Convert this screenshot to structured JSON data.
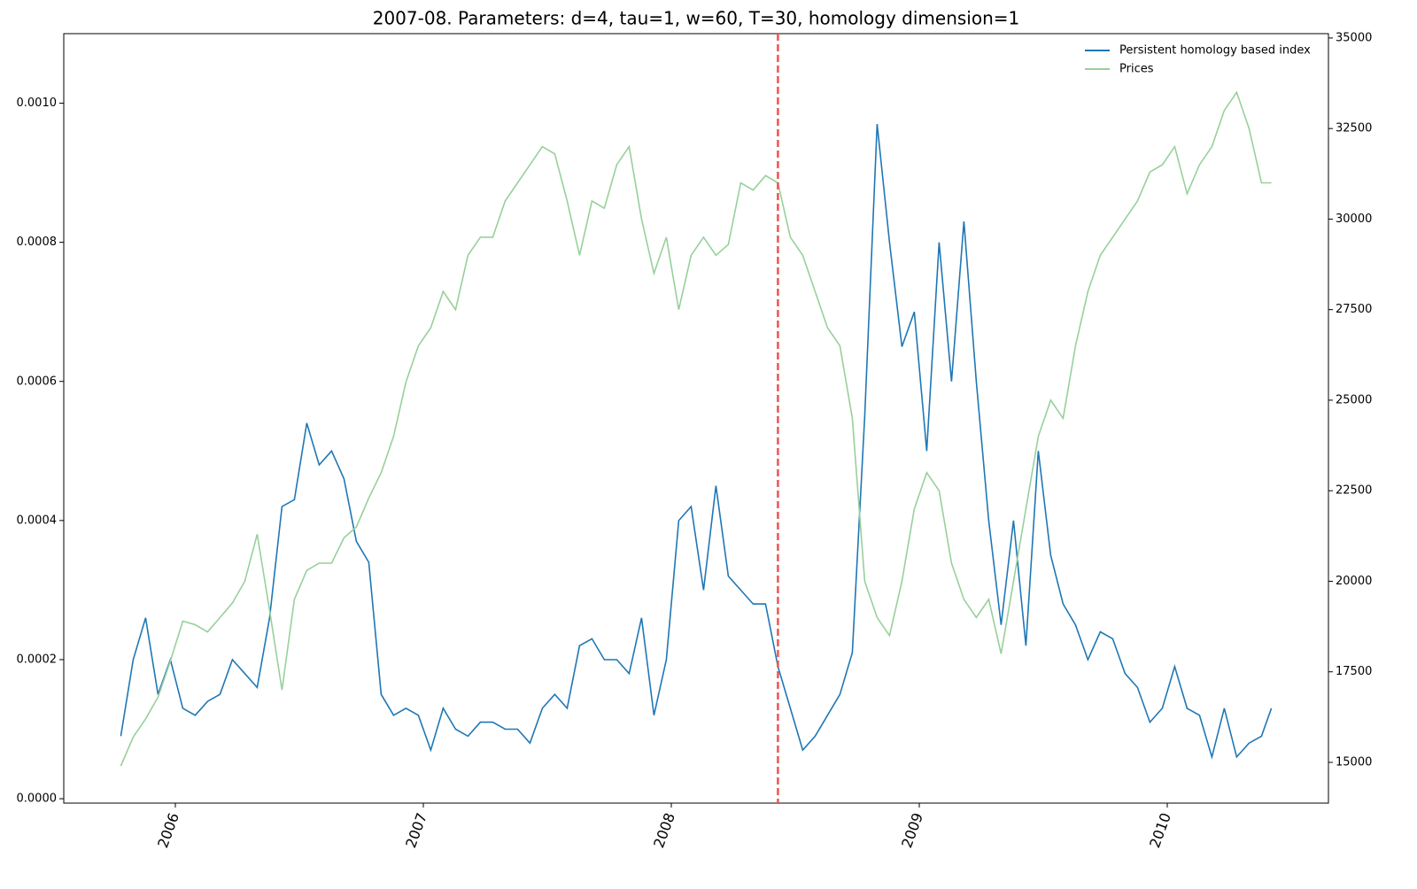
{
  "chart_data": {
    "type": "line",
    "title": "2007-08. Parameters: d=4, tau=1, w=60, T=30, homology dimension=1",
    "x": [
      2005.78,
      2005.83,
      2005.88,
      2005.93,
      2005.98,
      2006.03,
      2006.08,
      2006.13,
      2006.18,
      2006.23,
      2006.28,
      2006.33,
      2006.38,
      2006.43,
      2006.48,
      2006.53,
      2006.58,
      2006.63,
      2006.68,
      2006.73,
      2006.78,
      2006.83,
      2006.88,
      2006.93,
      2006.98,
      2007.03,
      2007.08,
      2007.13,
      2007.18,
      2007.23,
      2007.28,
      2007.33,
      2007.38,
      2007.43,
      2007.48,
      2007.53,
      2007.58,
      2007.63,
      2007.68,
      2007.73,
      2007.78,
      2007.83,
      2007.88,
      2007.93,
      2007.98,
      2008.03,
      2008.08,
      2008.13,
      2008.18,
      2008.23,
      2008.28,
      2008.33,
      2008.38,
      2008.43,
      2008.48,
      2008.53,
      2008.58,
      2008.63,
      2008.68,
      2008.73,
      2008.78,
      2008.83,
      2008.88,
      2008.93,
      2008.98,
      2009.03,
      2009.08,
      2009.13,
      2009.18,
      2009.23,
      2009.28,
      2009.33,
      2009.38,
      2009.43,
      2009.48,
      2009.53,
      2009.58,
      2009.63,
      2009.68,
      2009.73,
      2009.78,
      2009.83,
      2009.88,
      2009.93,
      2009.98,
      2010.03,
      2010.08,
      2010.13,
      2010.18,
      2010.23,
      2010.28,
      2010.33,
      2010.38,
      2010.42
    ],
    "series": [
      {
        "name": "Persistent homology based index",
        "color": "#1f77b4",
        "values": [
          9e-05,
          0.0002,
          0.00026,
          0.00015,
          0.0002,
          0.00013,
          0.00012,
          0.00014,
          0.00015,
          0.0002,
          0.00018,
          0.00016,
          0.00026,
          0.00042,
          0.00043,
          0.00054,
          0.00048,
          0.0005,
          0.00046,
          0.00037,
          0.00034,
          0.00015,
          0.00012,
          0.00013,
          0.00012,
          7e-05,
          0.00013,
          0.0001,
          9e-05,
          0.00011,
          0.00011,
          0.0001,
          0.0001,
          8e-05,
          0.00013,
          0.00015,
          0.00013,
          0.00022,
          0.00023,
          0.0002,
          0.0002,
          0.00018,
          0.00026,
          0.00012,
          0.0002,
          0.0004,
          0.00042,
          0.0003,
          0.00045,
          0.00032,
          0.0003,
          0.00028,
          0.00028,
          0.00019,
          0.00013,
          7e-05,
          9e-05,
          0.00012,
          0.00015,
          0.00021,
          0.00055,
          0.00097,
          0.0008,
          0.00065,
          0.0007,
          0.0005,
          0.0008,
          0.0006,
          0.00083,
          0.0006,
          0.0004,
          0.00025,
          0.0004,
          0.00022,
          0.0005,
          0.00035,
          0.00028,
          0.00025,
          0.0002,
          0.00024,
          0.00023,
          0.00018,
          0.00016,
          0.00011,
          0.00013,
          0.00019,
          0.00013,
          0.00012,
          6e-05,
          0.00013,
          6e-05,
          8e-05,
          9e-05,
          0.00013
        ]
      },
      {
        "name": "Prices",
        "color": "#98d09b",
        "axis": "y2",
        "values": [
          14900,
          15700,
          16200,
          16800,
          17800,
          18900,
          18800,
          18600,
          19000,
          19400,
          20000,
          21300,
          19200,
          17000,
          19500,
          20300,
          20500,
          20500,
          21200,
          21500,
          22300,
          23000,
          24000,
          25500,
          26500,
          27000,
          28000,
          27500,
          29000,
          29500,
          29500,
          30500,
          31000,
          31500,
          32000,
          31800,
          30500,
          29000,
          30500,
          30300,
          31500,
          32000,
          30000,
          28500,
          29500,
          27500,
          29000,
          29500,
          29000,
          29300,
          31000,
          30800,
          31200,
          31000,
          29500,
          29000,
          28000,
          27000,
          26500,
          24500,
          20000,
          19000,
          18500,
          20000,
          22000,
          23000,
          22500,
          20500,
          19500,
          19000,
          19500,
          18000,
          20000,
          22000,
          24000,
          25000,
          24500,
          26500,
          28000,
          29000,
          29500,
          30000,
          30500,
          31300,
          31500,
          32000,
          30700,
          31500,
          32000,
          33000,
          33500,
          32500,
          31000,
          31000
        ]
      }
    ],
    "xlim": [
      2005.55,
      2010.65
    ],
    "xticks": [
      2006,
      2007,
      2008,
      2009,
      2010
    ],
    "ylim": [
      -6.3e-06,
      0.0011
    ],
    "yticks": [
      {
        "value": 0,
        "label": "0.0000"
      },
      0.0002,
      0.0004,
      0.0006,
      0.0008,
      {
        "value": 0.001,
        "label": "0.0010"
      }
    ],
    "y2lim": [
      13875,
      35120
    ],
    "y2ticks": [
      15000,
      17500,
      20000,
      22500,
      25000,
      27500,
      30000,
      32500,
      35000
    ],
    "vline": {
      "value": 2008.43,
      "color": "#ef5350"
    },
    "legend": "upper right"
  }
}
